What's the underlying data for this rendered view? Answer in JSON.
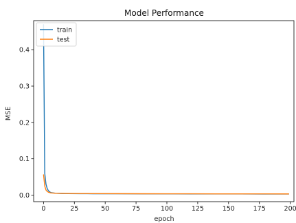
{
  "chart_data": {
    "type": "line",
    "title": "Model Performance",
    "xlabel": "epoch",
    "ylabel": "MSE",
    "xlim": [
      -8,
      203
    ],
    "ylim": [
      -0.018,
      0.48
    ],
    "xticks": [
      0,
      25,
      50,
      75,
      100,
      125,
      150,
      175,
      200
    ],
    "yticks": [
      0.0,
      0.1,
      0.2,
      0.3,
      0.4
    ],
    "ytick_labels": [
      "0.0",
      "0.1",
      "0.2",
      "0.3",
      "0.4"
    ],
    "xtick_labels": [
      "0",
      "25",
      "50",
      "75",
      "100",
      "125",
      "150",
      "175",
      "200"
    ],
    "grid": false,
    "legend_position": "top-left",
    "series": [
      {
        "name": "train",
        "color": "#1f77b4",
        "x": [
          0,
          1,
          2,
          3,
          4,
          5,
          6,
          8,
          10,
          15,
          20,
          30,
          40,
          60,
          80,
          100,
          120,
          140,
          160,
          180,
          199
        ],
        "values": [
          0.47,
          0.06,
          0.03,
          0.018,
          0.012,
          0.009,
          0.007,
          0.006,
          0.005,
          0.0045,
          0.0042,
          0.004,
          0.0038,
          0.0036,
          0.0035,
          0.0034,
          0.0033,
          0.0032,
          0.0031,
          0.003,
          0.003
        ]
      },
      {
        "name": "test",
        "color": "#ff7f0e",
        "x": [
          0,
          1,
          2,
          3,
          4,
          5,
          6,
          8,
          10,
          15,
          20,
          30,
          40,
          60,
          80,
          100,
          120,
          140,
          160,
          180,
          199
        ],
        "values": [
          0.057,
          0.025,
          0.014,
          0.01,
          0.008,
          0.007,
          0.006,
          0.0055,
          0.005,
          0.0048,
          0.0046,
          0.0044,
          0.0042,
          0.004,
          0.0038,
          0.0037,
          0.0036,
          0.0035,
          0.0034,
          0.0034,
          0.0033
        ]
      }
    ]
  }
}
